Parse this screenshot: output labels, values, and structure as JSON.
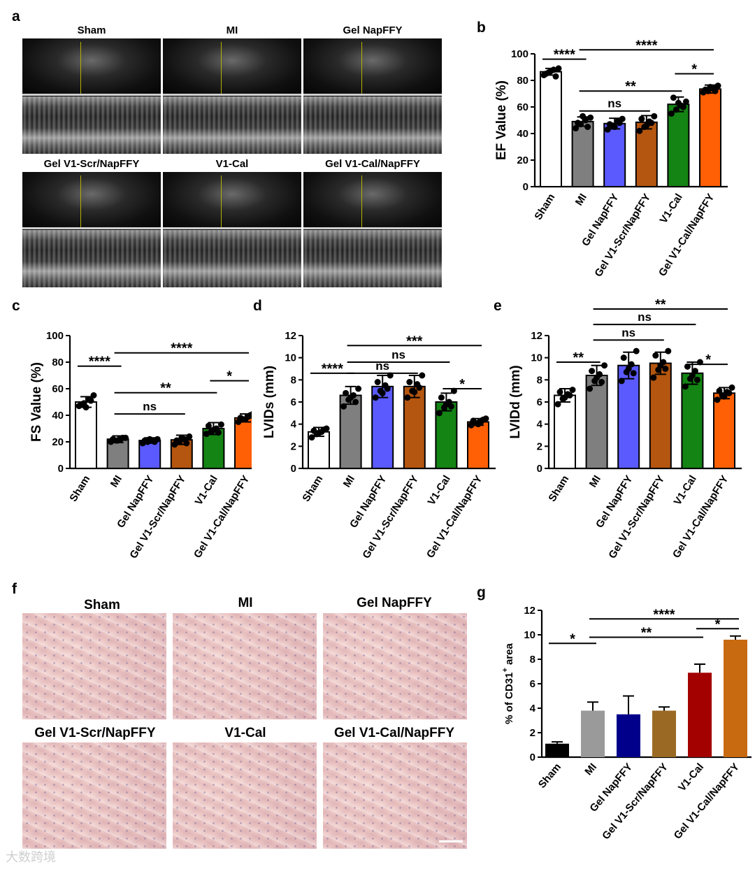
{
  "panel_letters": {
    "a": "a",
    "b": "b",
    "c": "c",
    "d": "d",
    "e": "e",
    "f": "f",
    "g": "g"
  },
  "echo_labels": [
    "Sham",
    "MI",
    "Gel NapFFY",
    "Gel V1-Scr/NapFFY",
    "V1-Cal",
    "Gel V1-Cal/NapFFY"
  ],
  "histo_labels": [
    "Sham",
    "MI",
    "Gel NapFFY",
    "Gel V1-Scr/NapFFY",
    "V1-Cal",
    "Gel V1-Cal/NapFFY"
  ],
  "watermark": "大数跨境",
  "colors": {
    "Sham": "#ffffff",
    "MI": "#7f7f7f",
    "Gel NapFFY": "#5a5aff",
    "Gel V1-Scr/NapFFY": "#b4560f",
    "V1-Cal": "#148414",
    "Gel V1-Cal/NapFFY": "#ff5f05",
    "g_Sham": "#000000",
    "g_MI": "#9a9a9a",
    "g_Gel NapFFY": "#00008b",
    "g_Gel V1-Scr/NapFFY": "#9a6a24",
    "g_V1-Cal": "#a30000",
    "g_Gel V1-Cal/NapFFY": "#c86a10"
  },
  "chart_data": [
    {
      "id": "b",
      "type": "bar",
      "categories": [
        "Sham",
        "MI",
        "Gel NapFFY",
        "Gel V1-Scr/NapFFY",
        "V1-Cal",
        "Gel V1-Cal/NapFFY"
      ],
      "values": [
        86.5,
        49,
        47.5,
        48.5,
        62,
        73.5
      ],
      "errors": [
        2.5,
        3.5,
        4,
        5,
        5.5,
        3
      ],
      "points": [
        [
          84,
          86,
          88,
          89,
          85,
          87,
          83
        ],
        [
          44,
          47,
          50,
          52,
          48,
          53,
          45
        ],
        [
          43,
          46,
          49,
          51,
          47,
          45,
          48
        ],
        [
          42,
          45,
          49,
          53,
          51,
          46,
          48
        ],
        [
          55,
          58,
          61,
          64,
          67,
          63,
          60
        ],
        [
          71,
          72,
          74,
          76,
          73,
          75,
          72
        ]
      ],
      "ylabel": "EF Value (%)",
      "ylim": [
        0,
        100
      ],
      "yticks": [
        0,
        20,
        40,
        60,
        80,
        100
      ],
      "sig": [
        {
          "from": 0,
          "to": 1,
          "label": "****",
          "y": 96
        },
        {
          "from": 1,
          "to": 5,
          "label": "****",
          "y": 103
        },
        {
          "from": 1,
          "to": 4,
          "label": "**",
          "y": 72
        },
        {
          "from": 1,
          "to": 3,
          "label": "ns",
          "y": 57
        },
        {
          "from": 4,
          "to": 5,
          "label": "*",
          "y": 85
        }
      ]
    },
    {
      "id": "c",
      "type": "bar",
      "categories": [
        "Sham",
        "MI",
        "Gel NapFFY",
        "Gel V1-Scr/NapFFY",
        "V1-Cal",
        "Gel V1-Cal/NapFFY"
      ],
      "values": [
        50,
        22,
        21,
        21.5,
        30,
        38
      ],
      "errors": [
        4,
        2.5,
        2,
        3.5,
        4.5,
        3
      ],
      "points": [
        [
          47,
          49,
          52,
          55,
          48,
          46,
          51
        ],
        [
          20,
          21,
          22,
          23,
          22,
          21,
          23
        ],
        [
          19,
          20,
          21,
          22,
          21,
          22,
          20
        ],
        [
          18,
          20,
          22,
          24,
          21,
          23,
          19
        ],
        [
          26,
          28,
          30,
          33,
          32,
          29,
          27
        ],
        [
          35,
          37,
          39,
          41,
          38,
          37,
          40
        ]
      ],
      "ylabel": "FS Value (%)",
      "ylim": [
        0,
        100
      ],
      "yticks": [
        0,
        20,
        40,
        60,
        80,
        100
      ],
      "sig": [
        {
          "from": 0,
          "to": 1,
          "label": "****",
          "y": 77
        },
        {
          "from": 1,
          "to": 5,
          "label": "****",
          "y": 87
        },
        {
          "from": 1,
          "to": 4,
          "label": "**",
          "y": 57
        },
        {
          "from": 1,
          "to": 3,
          "label": "ns",
          "y": 41
        },
        {
          "from": 4,
          "to": 5,
          "label": "*",
          "y": 66
        }
      ]
    },
    {
      "id": "d",
      "type": "bar",
      "categories": [
        "Sham",
        "MI",
        "Gel NapFFY",
        "Gel V1-Scr/NapFFY",
        "V1-Cal",
        "Gel V1-Cal/NapFFY"
      ],
      "values": [
        3.3,
        6.6,
        7.4,
        7.4,
        6.0,
        4.2
      ],
      "errors": [
        0.4,
        0.8,
        1.0,
        1.0,
        0.8,
        0.3
      ],
      "points": [
        [
          2.8,
          3.1,
          3.3,
          3.6,
          3.4,
          3.2,
          3.5
        ],
        [
          5.6,
          6.2,
          6.6,
          7.2,
          6.8,
          6.4,
          6.0
        ],
        [
          6.4,
          7.0,
          7.5,
          8.4,
          7.8,
          6.8,
          7.2
        ],
        [
          6.4,
          7.0,
          7.6,
          8.4,
          7.8,
          6.9,
          7.3
        ],
        [
          5.0,
          5.5,
          6.0,
          7.0,
          6.4,
          5.8,
          5.6
        ],
        [
          3.9,
          4.1,
          4.2,
          4.5,
          4.3,
          4.0,
          4.4
        ]
      ],
      "ylabel": "LVIDs (mm)",
      "ylim": [
        0,
        12
      ],
      "yticks": [
        0,
        2,
        4,
        6,
        8,
        10,
        12
      ],
      "sig": [
        {
          "from": 0,
          "to": 1,
          "label": "****",
          "y": 8.6
        },
        {
          "from": 1,
          "to": 5,
          "label": "***",
          "y": 11.1
        },
        {
          "from": 1,
          "to": 4,
          "label": "ns",
          "y": 9.6
        },
        {
          "from": 1,
          "to": 3,
          "label": "ns",
          "y": 8.6
        },
        {
          "from": 4,
          "to": 5,
          "label": "*",
          "y": 7.2
        }
      ]
    },
    {
      "id": "e",
      "type": "bar",
      "categories": [
        "Sham",
        "MI",
        "Gel NapFFY",
        "Gel V1-Scr/NapFFY",
        "V1-Cal",
        "Gel V1-Cal/NapFFY"
      ],
      "values": [
        6.6,
        8.4,
        9.3,
        9.5,
        8.6,
        6.8
      ],
      "errors": [
        0.6,
        0.9,
        1.2,
        1.0,
        1.0,
        0.5
      ],
      "points": [
        [
          5.8,
          6.3,
          6.7,
          7.1,
          6.9,
          6.4,
          6.6
        ],
        [
          7.2,
          7.9,
          8.5,
          9.3,
          8.8,
          8.2,
          7.8
        ],
        [
          7.9,
          8.7,
          9.4,
          10.6,
          10.0,
          9.0,
          8.6
        ],
        [
          8.2,
          8.9,
          9.6,
          10.6,
          10.2,
          9.3,
          9.0
        ],
        [
          7.4,
          8.1,
          8.8,
          9.6,
          9.2,
          8.4,
          8.0
        ],
        [
          6.2,
          6.6,
          6.9,
          7.3,
          7.0,
          6.5,
          6.8
        ]
      ],
      "ylabel": "LVIDd (mm)",
      "ylim": [
        0,
        12
      ],
      "yticks": [
        0,
        2,
        4,
        6,
        8,
        10,
        12
      ],
      "sig": [
        {
          "from": 0,
          "to": 1,
          "label": "**",
          "y": 9.6
        },
        {
          "from": 1,
          "to": 5,
          "label": "**",
          "y": 14.4
        },
        {
          "from": 1,
          "to": 4,
          "label": "ns",
          "y": 13.0
        },
        {
          "from": 1,
          "to": 3,
          "label": "ns",
          "y": 11.6
        },
        {
          "from": 4,
          "to": 5,
          "label": "*",
          "y": 9.4
        }
      ]
    },
    {
      "id": "g",
      "type": "bar",
      "categories": [
        "Sham",
        "MI",
        "Gel NapFFY",
        "Gel V1-Scr/NapFFY",
        "V1-Cal",
        "Gel V1-Cal/NapFFY"
      ],
      "values": [
        1.1,
        3.8,
        3.5,
        3.8,
        6.9,
        9.6
      ],
      "errors": [
        0.15,
        0.7,
        1.5,
        0.3,
        0.7,
        0.3
      ],
      "points": [],
      "ylabel_prefix": "% of CD31",
      "ylabel_sup": "+",
      "ylabel_suffix": " area",
      "ylim": [
        0,
        12
      ],
      "yticks": [
        0,
        2,
        4,
        6,
        8,
        10,
        12
      ],
      "sig": [
        {
          "from": 0,
          "to": 1,
          "label": "*",
          "y": 9.3
        },
        {
          "from": 1,
          "to": 5,
          "label": "****",
          "y": 11.3
        },
        {
          "from": 1,
          "to": 4,
          "label": "**",
          "y": 9.8
        },
        {
          "from": 4,
          "to": 5,
          "label": "*",
          "y": 10.5
        }
      ]
    }
  ]
}
